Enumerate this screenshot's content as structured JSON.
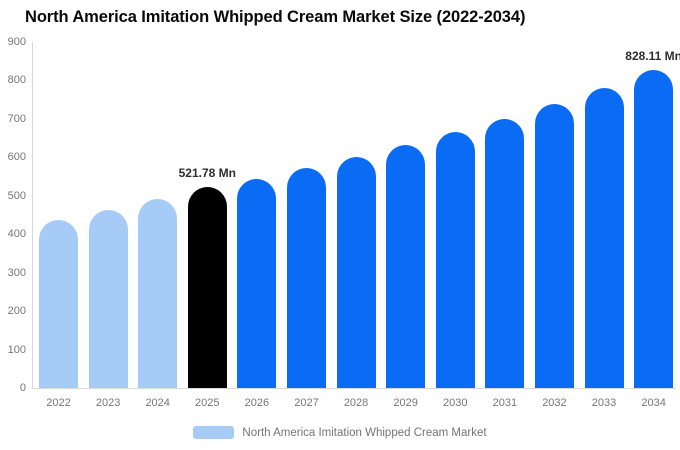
{
  "header": {
    "title": "North America Imitation Whipped Cream Market Size (2022-2034)"
  },
  "colors": {
    "historical_bar": "#A5CBF6",
    "highlight_bar": "#000000",
    "forecast_bar": "#0A6CF5",
    "axis_text": "#767676",
    "annotation_text": "#2e2e2e",
    "axis_line": "#d9d9d9",
    "background": "#ffffff"
  },
  "chart_data": {
    "type": "bar",
    "title": "North America Imitation Whipped Cream Market Size (2022-2034)",
    "xlabel": "",
    "ylabel": "",
    "categories": [
      "2022",
      "2023",
      "2024",
      "2025",
      "2026",
      "2027",
      "2028",
      "2029",
      "2030",
      "2031",
      "2032",
      "2033",
      "2034"
    ],
    "values": [
      437,
      463,
      491,
      521.78,
      544,
      572,
      601,
      632,
      667,
      700,
      740,
      780,
      828.11
    ],
    "bar_colors": [
      "#A5CBF6",
      "#A5CBF6",
      "#A5CBF6",
      "#000000",
      "#0A6CF5",
      "#0A6CF5",
      "#0A6CF5",
      "#0A6CF5",
      "#0A6CF5",
      "#0A6CF5",
      "#0A6CF5",
      "#0A6CF5",
      "#0A6CF5"
    ],
    "annotations": [
      {
        "index": 3,
        "category": "2025",
        "label": "521.78 Mn"
      },
      {
        "index": 12,
        "category": "2034",
        "label": "828.11 Mn"
      }
    ],
    "ylim": [
      0,
      900
    ],
    "yticks": [
      "0",
      "100",
      "200",
      "300",
      "400",
      "500",
      "600",
      "700",
      "800",
      "900"
    ],
    "grid": false,
    "unit": "Mn",
    "legend": {
      "position": "bottom",
      "items": [
        {
          "label": "North America Imitation Whipped Cream Market",
          "color": "#A5CBF6"
        }
      ]
    }
  }
}
